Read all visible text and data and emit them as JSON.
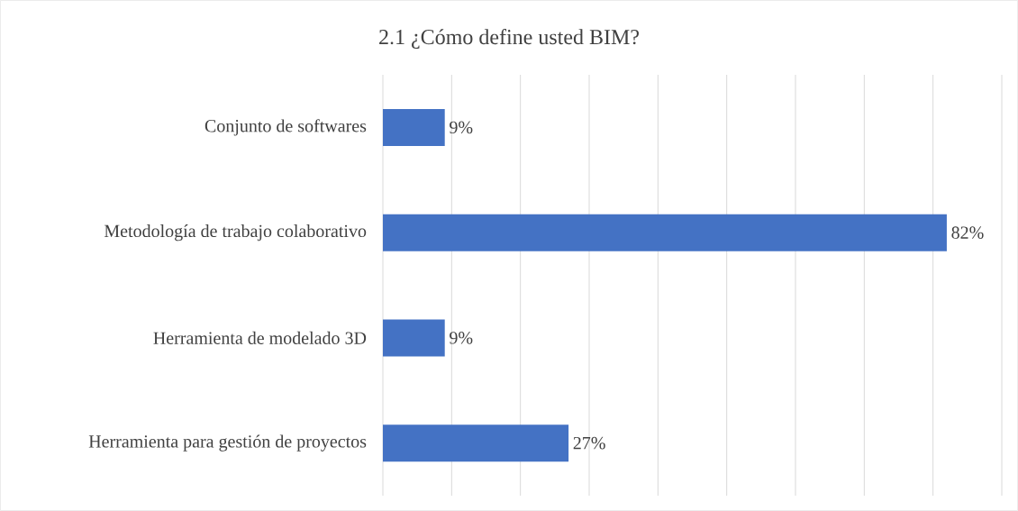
{
  "chart_data": {
    "type": "bar",
    "orientation": "horizontal",
    "title": "2.1 ¿Cómo define usted BIM?",
    "categories": [
      "Conjunto de softwares",
      "Metodología de trabajo colaborativo",
      "Herramienta de modelado 3D",
      "Herramienta para gestión de proyectos"
    ],
    "values": [
      9,
      82,
      9,
      27
    ],
    "value_labels": [
      "9%",
      "82%",
      "9%",
      "27%"
    ],
    "color": "#4472c4",
    "xlim": [
      0,
      90
    ],
    "xticks": [
      {
        "value": 0,
        "label": null
      },
      {
        "value": 10,
        "label": null
      },
      {
        "value": 20,
        "label": null
      },
      {
        "value": 30,
        "label": null
      },
      {
        "value": 40,
        "label": null
      },
      {
        "value": 50,
        "label": null
      },
      {
        "value": 60,
        "label": null
      },
      {
        "value": 70,
        "label": null
      },
      {
        "value": 80,
        "label": null
      },
      {
        "value": 90,
        "label": null
      }
    ],
    "grid": "x",
    "tick_labels": "y"
  }
}
